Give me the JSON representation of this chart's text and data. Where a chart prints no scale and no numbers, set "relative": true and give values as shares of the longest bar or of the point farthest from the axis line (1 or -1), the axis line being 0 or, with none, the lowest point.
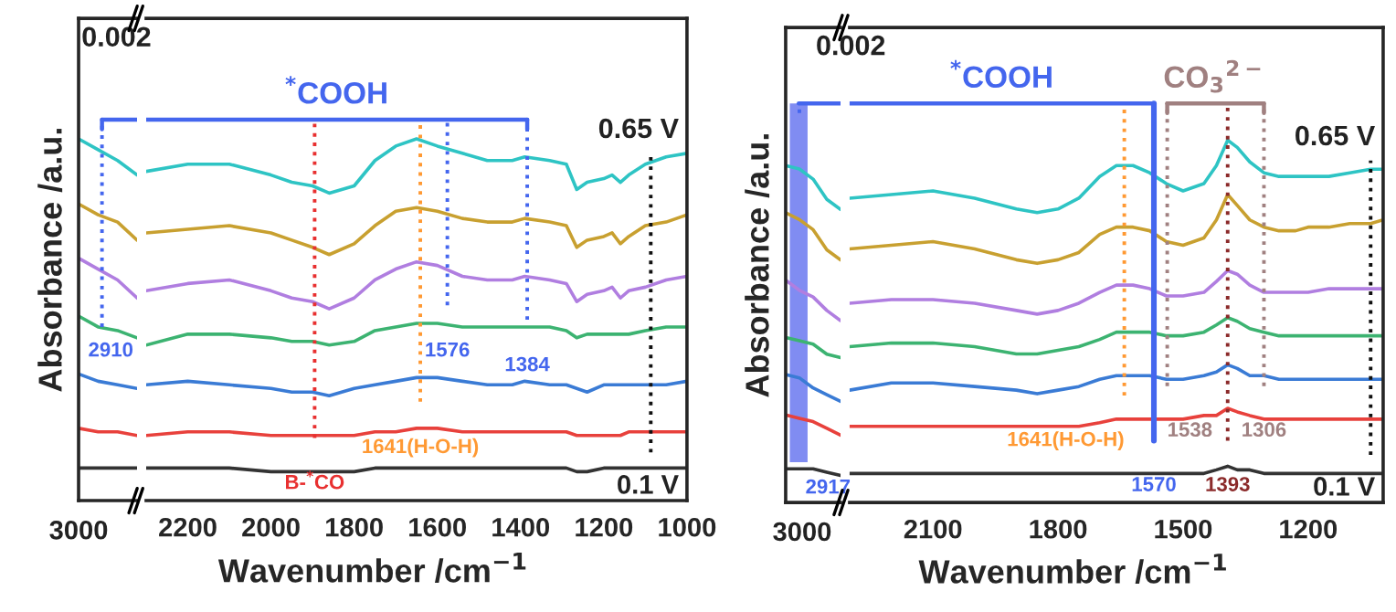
{
  "chart_data": [
    {
      "type": "line",
      "relative": true,
      "tick_labels": false,
      "ylabel": "Absorbance /a.u.",
      "categories": [
        null,
        null,
        null,
        null
      ],
      "series": [
        {
          "color": "#2ec4c4",
          "values": [
            1.0,
            0.97,
            0.94,
            0.9
          ]
        },
        {
          "color": "#c8a030",
          "values": [
            0.82,
            0.79,
            0.77,
            0.72
          ]
        },
        {
          "color": "#b07ee0",
          "values": [
            0.67,
            0.64,
            0.61,
            0.56
          ]
        },
        {
          "color": "#3cb371",
          "values": [
            0.51,
            0.48,
            0.47,
            0.45
          ]
        },
        {
          "color": "#3a7bd5",
          "values": [
            0.35,
            0.33,
            0.32,
            0.31
          ]
        },
        {
          "color": "#e8413c",
          "values": [
            0.2,
            0.19,
            0.19,
            0.18
          ]
        },
        {
          "color": "#333333",
          "values": [
            0.09,
            0.09,
            0.09,
            0.09
          ]
        }
      ],
      "annotations": [
        "0.002",
        "3000",
        "2910"
      ]
    },
    {
      "type": "line",
      "relative": true,
      "tick_labels": "x",
      "xlabel": "Wavenumber /cm$^{−1}$",
      "xlim": [
        2300,
        1000
      ],
      "xticks": [
        2200,
        2000,
        1800,
        1600,
        1400,
        1200,
        1000
      ],
      "x": [
        2300,
        2200,
        2100,
        2000,
        1950,
        1900,
        1860,
        1800,
        1750,
        1700,
        1650,
        1600,
        1540,
        1480,
        1420,
        1390,
        1330,
        1290,
        1265,
        1240,
        1200,
        1180,
        1160,
        1140,
        1100,
        1050,
        1000
      ],
      "series": [
        {
          "color": "#2ec4c4",
          "values": [
            0.91,
            0.93,
            0.93,
            0.9,
            0.88,
            0.87,
            0.85,
            0.87,
            0.94,
            0.98,
            1.0,
            0.98,
            0.96,
            0.94,
            0.94,
            0.95,
            0.94,
            0.93,
            0.86,
            0.88,
            0.89,
            0.9,
            0.88,
            0.9,
            0.93,
            0.95,
            0.96
          ]
        },
        {
          "color": "#c8a030",
          "values": [
            0.74,
            0.75,
            0.76,
            0.74,
            0.72,
            0.7,
            0.68,
            0.71,
            0.76,
            0.8,
            0.81,
            0.8,
            0.78,
            0.77,
            0.77,
            0.78,
            0.77,
            0.76,
            0.7,
            0.72,
            0.73,
            0.74,
            0.71,
            0.73,
            0.76,
            0.77,
            0.79
          ]
        },
        {
          "color": "#b07ee0",
          "values": [
            0.58,
            0.6,
            0.61,
            0.58,
            0.56,
            0.55,
            0.53,
            0.56,
            0.61,
            0.64,
            0.66,
            0.65,
            0.62,
            0.61,
            0.61,
            0.62,
            0.61,
            0.6,
            0.55,
            0.57,
            0.58,
            0.59,
            0.56,
            0.58,
            0.59,
            0.61,
            0.62
          ]
        },
        {
          "color": "#3cb371",
          "values": [
            0.43,
            0.46,
            0.46,
            0.45,
            0.44,
            0.44,
            0.43,
            0.44,
            0.47,
            0.48,
            0.49,
            0.49,
            0.48,
            0.48,
            0.48,
            0.48,
            0.48,
            0.47,
            0.45,
            0.46,
            0.46,
            0.46,
            0.46,
            0.46,
            0.47,
            0.48,
            0.48
          ]
        },
        {
          "color": "#3a7bd5",
          "values": [
            0.32,
            0.33,
            0.32,
            0.31,
            0.3,
            0.3,
            0.29,
            0.31,
            0.32,
            0.33,
            0.34,
            0.34,
            0.33,
            0.32,
            0.32,
            0.33,
            0.32,
            0.32,
            0.31,
            0.3,
            0.32,
            0.32,
            0.32,
            0.32,
            0.32,
            0.32,
            0.33
          ]
        },
        {
          "color": "#e8413c",
          "values": [
            0.18,
            0.19,
            0.19,
            0.18,
            0.18,
            0.18,
            0.18,
            0.18,
            0.19,
            0.19,
            0.2,
            0.2,
            0.19,
            0.19,
            0.19,
            0.19,
            0.19,
            0.19,
            0.18,
            0.18,
            0.18,
            0.18,
            0.18,
            0.19,
            0.19,
            0.19,
            0.19
          ]
        },
        {
          "color": "#333333",
          "values": [
            0.09,
            0.09,
            0.09,
            0.08,
            0.08,
            0.08,
            0.08,
            0.08,
            0.09,
            0.09,
            0.09,
            0.09,
            0.09,
            0.09,
            0.09,
            0.09,
            0.09,
            0.09,
            0.08,
            0.08,
            0.09,
            0.09,
            0.09,
            0.09,
            0.09,
            0.09,
            0.09
          ]
        }
      ],
      "ref_lines": [
        {
          "axis": "x",
          "value": 1895,
          "label": "B-$^{*}$CO",
          "color": "#e83030",
          "line_style": "dotted"
        },
        {
          "axis": "x",
          "value": 1641,
          "label": "1641(H-O-H)",
          "color": "#ff9933",
          "line_style": "dotted"
        },
        {
          "axis": "x",
          "value": 1576,
          "label": "1576",
          "color": "#4466ee",
          "line_style": "dotted"
        },
        {
          "axis": "x",
          "value": 1384,
          "label": "1384",
          "color": "#4466ee",
          "line_style": "dotted"
        },
        {
          "axis": "x",
          "value": 1087,
          "color": "#111111",
          "line_style": "dotted"
        }
      ],
      "annotations": [
        "0.65 V",
        "0.1 V",
        "$^{*}$COOH"
      ]
    },
    {
      "type": "line",
      "relative": true,
      "tick_labels": false,
      "ylabel": "Absorbance /a.u.",
      "categories": [
        null,
        null,
        null,
        null,
        null
      ],
      "series": [
        {
          "color": "#2ec4c4",
          "values": [
            1.0,
            0.99,
            0.96,
            0.9,
            0.87
          ]
        },
        {
          "color": "#c8a030",
          "values": [
            0.86,
            0.84,
            0.81,
            0.75,
            0.72
          ]
        },
        {
          "color": "#b07ee0",
          "values": [
            0.66,
            0.63,
            0.61,
            0.57,
            0.54
          ]
        },
        {
          "color": "#3cb371",
          "values": [
            0.49,
            0.48,
            0.47,
            0.44,
            0.43
          ]
        },
        {
          "color": "#3a7bd5",
          "values": [
            0.38,
            0.37,
            0.34,
            0.32,
            0.3
          ]
        },
        {
          "color": "#e8413c",
          "values": [
            0.26,
            0.25,
            0.24,
            0.22,
            0.2
          ]
        },
        {
          "color": "#333333",
          "values": [
            0.1,
            0.1,
            0.1,
            0.09,
            0.08
          ]
        }
      ],
      "annotations": [
        "0.002",
        "3000",
        "2917"
      ]
    },
    {
      "type": "line",
      "relative": true,
      "tick_labels": "x",
      "xlabel": "Wavenumber /cm$^{−1}$",
      "xlim": [
        2300,
        1020
      ],
      "xticks": [
        2100,
        1800,
        1500,
        1200
      ],
      "x": [
        2300,
        2200,
        2100,
        2000,
        1900,
        1850,
        1800,
        1750,
        1700,
        1660,
        1620,
        1580,
        1540,
        1500,
        1450,
        1420,
        1393,
        1370,
        1340,
        1306,
        1270,
        1230,
        1200,
        1150,
        1100,
        1050,
        1020
      ],
      "series": [
        {
          "color": "#2ec4c4",
          "values": [
            0.84,
            0.85,
            0.86,
            0.84,
            0.81,
            0.8,
            0.81,
            0.84,
            0.9,
            0.93,
            0.93,
            0.91,
            0.88,
            0.86,
            0.88,
            0.93,
            1.0,
            0.98,
            0.94,
            0.91,
            0.9,
            0.9,
            0.9,
            0.9,
            0.91,
            0.92,
            0.92
          ]
        },
        {
          "color": "#c8a030",
          "values": [
            0.7,
            0.71,
            0.72,
            0.7,
            0.67,
            0.66,
            0.67,
            0.69,
            0.74,
            0.76,
            0.76,
            0.75,
            0.72,
            0.71,
            0.73,
            0.78,
            0.85,
            0.82,
            0.78,
            0.76,
            0.75,
            0.75,
            0.76,
            0.76,
            0.77,
            0.77,
            0.78
          ]
        },
        {
          "color": "#b07ee0",
          "values": [
            0.55,
            0.56,
            0.56,
            0.55,
            0.53,
            0.52,
            0.53,
            0.55,
            0.58,
            0.6,
            0.6,
            0.59,
            0.57,
            0.57,
            0.58,
            0.61,
            0.64,
            0.63,
            0.6,
            0.58,
            0.58,
            0.58,
            0.58,
            0.59,
            0.59,
            0.59,
            0.59
          ]
        },
        {
          "color": "#3cb371",
          "values": [
            0.43,
            0.44,
            0.44,
            0.43,
            0.41,
            0.41,
            0.42,
            0.43,
            0.45,
            0.47,
            0.47,
            0.47,
            0.46,
            0.46,
            0.47,
            0.49,
            0.51,
            0.5,
            0.48,
            0.47,
            0.46,
            0.46,
            0.46,
            0.46,
            0.46,
            0.46,
            0.46
          ]
        },
        {
          "color": "#3a7bd5",
          "values": [
            0.31,
            0.33,
            0.33,
            0.32,
            0.31,
            0.3,
            0.31,
            0.32,
            0.34,
            0.35,
            0.35,
            0.35,
            0.34,
            0.34,
            0.35,
            0.36,
            0.38,
            0.37,
            0.35,
            0.35,
            0.34,
            0.34,
            0.34,
            0.34,
            0.34,
            0.34,
            0.34
          ]
        },
        {
          "color": "#e8413c",
          "values": [
            0.21,
            0.21,
            0.21,
            0.21,
            0.21,
            0.21,
            0.21,
            0.21,
            0.22,
            0.23,
            0.23,
            0.23,
            0.23,
            0.23,
            0.24,
            0.24,
            0.26,
            0.25,
            0.24,
            0.23,
            0.23,
            0.23,
            0.23,
            0.23,
            0.23,
            0.23,
            0.23
          ]
        },
        {
          "color": "#333333",
          "values": [
            0.08,
            0.08,
            0.08,
            0.08,
            0.08,
            0.08,
            0.08,
            0.08,
            0.08,
            0.08,
            0.08,
            0.08,
            0.08,
            0.08,
            0.08,
            0.09,
            0.1,
            0.09,
            0.09,
            0.08,
            0.08,
            0.08,
            0.08,
            0.08,
            0.08,
            0.08,
            0.08
          ]
        }
      ],
      "ref_lines": [
        {
          "axis": "x",
          "value": 1641,
          "label": "1641(H-O-H)",
          "color": "#ff9933",
          "line_style": "dotted"
        },
        {
          "axis": "x",
          "value": 1570,
          "label": "1570",
          "color": "#4466ee",
          "line_style": "solid"
        },
        {
          "axis": "x",
          "value": 1538,
          "label": "1538",
          "color": "#a08080",
          "line_style": "dotted"
        },
        {
          "axis": "x",
          "value": 1393,
          "label": "1393",
          "color": "#8b2a2a",
          "line_style": "dotted"
        },
        {
          "axis": "x",
          "value": 1306,
          "label": "1306",
          "color": "#a08080",
          "line_style": "dotted"
        },
        {
          "axis": "x",
          "value": 1050,
          "color": "#111111",
          "line_style": "dotted"
        }
      ],
      "annotations": [
        "0.65 V",
        "0.1 V",
        "$^{*}$COOH",
        "CO$_{3}$$^{2−}$"
      ]
    }
  ]
}
